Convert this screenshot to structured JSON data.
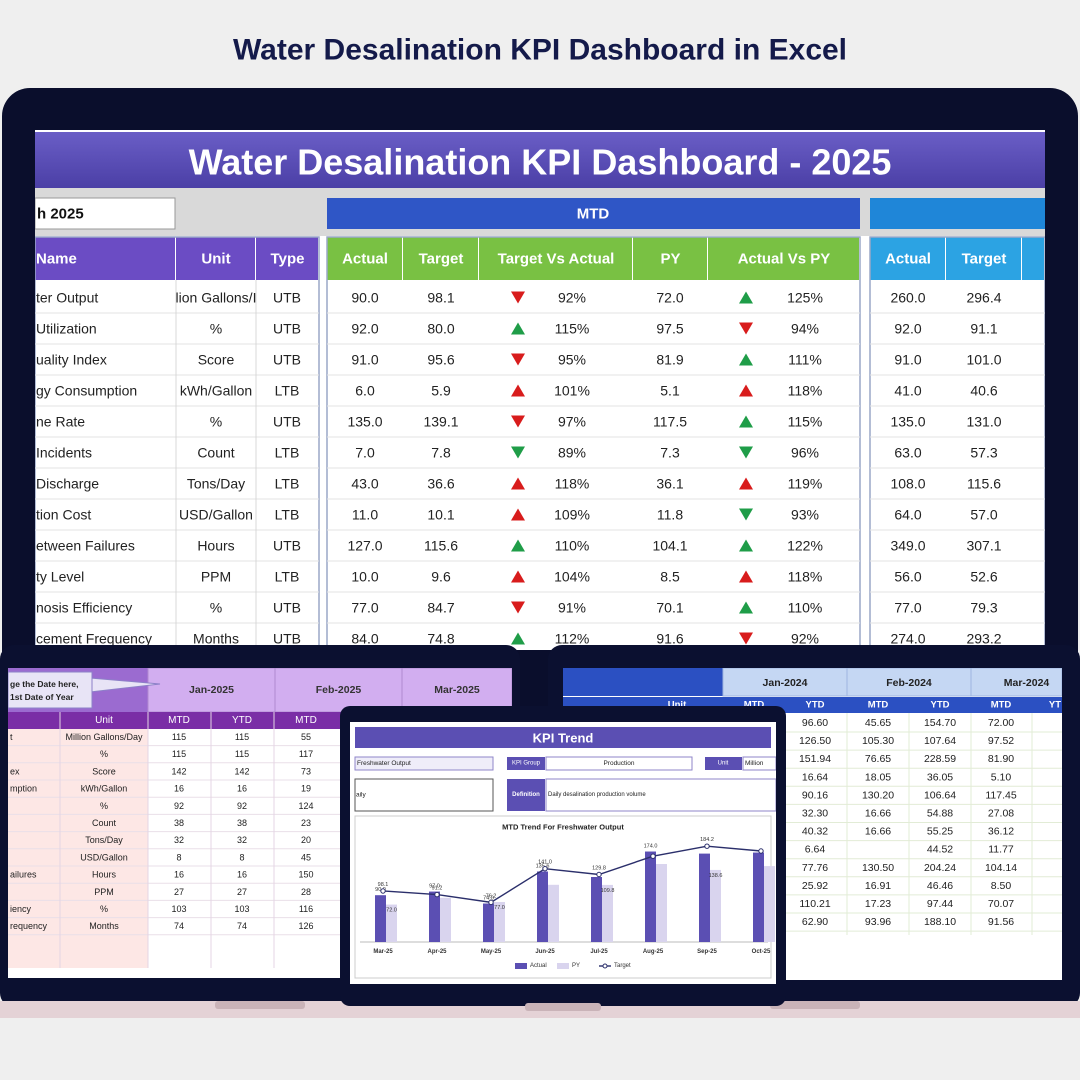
{
  "header": {
    "title": "Water Desalination KPI Dashboard in Excel"
  },
  "main": {
    "title": "Water Desalination KPI Dashboard - 2025",
    "month": "h 2025",
    "mtd_label": "MTD",
    "arrow_colors": {
      "red": "#d81c1c",
      "green": "#1f9d48"
    },
    "columns": {
      "info": [
        "Name",
        "Unit",
        "Type"
      ],
      "mtd": [
        "Actual",
        "Target",
        "Target Vs Actual",
        "PY",
        "Actual Vs PY"
      ],
      "ytd": [
        "Actual",
        "Target"
      ]
    },
    "rows": [
      [
        "ter Output",
        "lion Gallons/I",
        "UTB",
        "90.0",
        "98.1",
        "down",
        "red",
        "92%",
        "72.0",
        "up",
        "green",
        "125%",
        "260.0",
        "296.4"
      ],
      [
        " Utilization",
        "%",
        "UTB",
        "92.0",
        "80.0",
        "up",
        "green",
        "115%",
        "97.5",
        "down",
        "red",
        "94%",
        "92.0",
        "91.1"
      ],
      [
        "uality Index",
        "Score",
        "UTB",
        "91.0",
        "95.6",
        "down",
        "red",
        "95%",
        "81.9",
        "up",
        "green",
        "111%",
        "91.0",
        "101.0"
      ],
      [
        "gy Consumption",
        "kWh/Gallon",
        "LTB",
        "6.0",
        "5.9",
        "up",
        "red",
        "101%",
        "5.1",
        "up",
        "red",
        "118%",
        "41.0",
        "40.6"
      ],
      [
        "ne Rate",
        "%",
        "UTB",
        "135.0",
        "139.1",
        "down",
        "red",
        "97%",
        "117.5",
        "up",
        "green",
        "115%",
        "135.0",
        "131.0"
      ],
      [
        "Incidents",
        "Count",
        "LTB",
        "7.0",
        "7.8",
        "down",
        "green",
        "89%",
        "7.3",
        "down",
        "green",
        "96%",
        "63.0",
        "57.3"
      ],
      [
        "Discharge",
        "Tons/Day",
        "LTB",
        "43.0",
        "36.6",
        "up",
        "red",
        "118%",
        "36.1",
        "up",
        "red",
        "119%",
        "108.0",
        "115.6"
      ],
      [
        "tion Cost",
        "USD/Gallon",
        "LTB",
        "11.0",
        "10.1",
        "up",
        "red",
        "109%",
        "11.8",
        "down",
        "green",
        "93%",
        "64.0",
        "57.0"
      ],
      [
        "etween Failures",
        "Hours",
        "UTB",
        "127.0",
        "115.6",
        "up",
        "green",
        "110%",
        "104.1",
        "up",
        "green",
        "122%",
        "349.0",
        "307.1"
      ],
      [
        "ty Level",
        "PPM",
        "LTB",
        "10.0",
        "9.6",
        "up",
        "red",
        "104%",
        "8.5",
        "up",
        "red",
        "118%",
        "56.0",
        "52.6"
      ],
      [
        "nosis Efficiency",
        "%",
        "UTB",
        "77.0",
        "84.7",
        "down",
        "red",
        "91%",
        "70.1",
        "up",
        "green",
        "110%",
        "77.0",
        "79.3"
      ],
      [
        "cement Frequency",
        "Months",
        "UTB",
        "84.0",
        "74.8",
        "up",
        "green",
        "112%",
        "91.6",
        "down",
        "red",
        "92%",
        "274.0",
        "293.2"
      ]
    ]
  },
  "mtd_ytd_2025": {
    "note": [
      "ge the Date here,",
      "1st Date of Year"
    ],
    "months": [
      "Jan-2025",
      "Feb-2025",
      "Mar-2025"
    ],
    "headers": [
      "Unit",
      "MTD",
      "YTD",
      "MTD"
    ],
    "rows": [
      [
        "t",
        "Million Gallons/Day",
        "115",
        "115",
        "55"
      ],
      [
        null,
        "%",
        "115",
        "115",
        "117"
      ],
      [
        "ex",
        "Score",
        "142",
        "142",
        "73"
      ],
      [
        "mption",
        "kWh/Gallon",
        "16",
        "16",
        "19"
      ],
      [
        null,
        "%",
        "92",
        "92",
        "124"
      ],
      [
        null,
        "Count",
        "38",
        "38",
        "23"
      ],
      [
        null,
        "Tons/Day",
        "32",
        "32",
        "20"
      ],
      [
        null,
        "USD/Gallon",
        "8",
        "8",
        "45"
      ],
      [
        "ailures",
        "Hours",
        "16",
        "16",
        "150"
      ],
      [
        null,
        "PPM",
        "27",
        "27",
        "28"
      ],
      [
        "iency",
        "%",
        "103",
        "103",
        "116"
      ],
      [
        "requency",
        "Months",
        "74",
        "74",
        "126"
      ]
    ]
  },
  "mtd_ytd_2024": {
    "months": [
      "Jan-2024",
      "Feb-2024",
      "Mar-2024"
    ],
    "headers": [
      "Unit",
      "MTD",
      "YTD",
      "MTD",
      "YTD",
      "MTD",
      "YT"
    ],
    "rows": [
      [
        "96.60",
        "45.65",
        "154.70",
        "72.00"
      ],
      [
        "126.50",
        "105.30",
        "107.64",
        "97.52"
      ],
      [
        "151.94",
        "76.65",
        "228.59",
        "81.90"
      ],
      [
        "16.64",
        "18.05",
        "36.05",
        "5.10"
      ],
      [
        "90.16",
        "130.20",
        "106.64",
        "117.45"
      ],
      [
        "32.30",
        "16.66",
        "54.88",
        "27.08"
      ],
      [
        "40.32",
        "16.66",
        "55.25",
        "36.12"
      ],
      [
        "6.64",
        null,
        "44.52",
        "11.77"
      ],
      [
        "77.76",
        "130.50",
        "204.24",
        "104.14"
      ],
      [
        "25.92",
        "16.91",
        "46.46",
        "8.50"
      ],
      [
        "110.21",
        "17.23",
        "97.44",
        "70.07"
      ],
      [
        "62.90",
        "93.96",
        "188.10",
        "91.56"
      ]
    ]
  },
  "kpi_trend": {
    "title": "KPI Trend",
    "kpi": "Freshwater Output",
    "group_label": "KPI Group",
    "group": "Production",
    "unit_label": "Unit",
    "unit": "Million",
    "kpi_desc": "aily",
    "definition_label": "Definition",
    "definition": "Daily desalination production volume"
  },
  "chart_data": {
    "type": "combo",
    "title": "MTD Trend For Freshwater Output",
    "categories": [
      "Mar-25",
      "Apr-25",
      "May-25",
      "Jun-25",
      "Jul-25",
      "Aug-25",
      "Sep-25",
      "Oct-25"
    ],
    "ylim": [
      0,
      200
    ],
    "legend": "bottom",
    "series": [
      {
        "name": "Actual",
        "type": "bar",
        "color": "#5b4fb3",
        "values": [
          90.0,
          97.0,
          74.0,
          135.6,
          125,
          174.0,
          170,
          172
        ],
        "value_labels": [
          "90.0",
          "97.0",
          "74.0",
          "135.6",
          null,
          "174.0",
          null,
          null
        ]
      },
      {
        "name": "PY",
        "type": "bar",
        "color": "#d9d4ee",
        "values": [
          72.0,
          85,
          77.0,
          110,
          109.8,
          150,
          138.6,
          146
        ],
        "value_labels": [
          "72.0",
          null,
          "77.0",
          null,
          "109.8",
          null,
          "138.6",
          null
        ]
      },
      {
        "name": "Target",
        "type": "line",
        "color": "#2b2f6b",
        "values": [
          98.1,
          91.2,
          76.2,
          141.0,
          129.8,
          165,
          184.2,
          175
        ],
        "value_labels": [
          "98.1",
          "91.2",
          "76.2",
          "141.0",
          "129.8",
          null,
          "184.2",
          null
        ]
      }
    ]
  }
}
